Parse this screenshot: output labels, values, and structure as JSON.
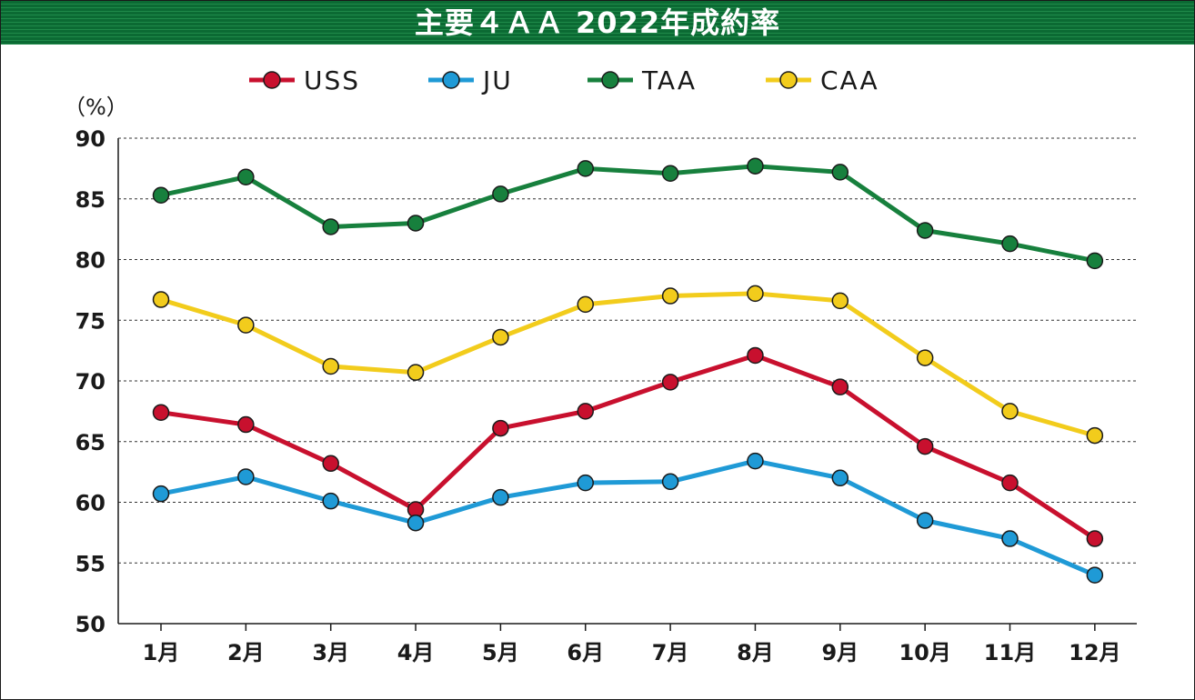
{
  "chart_data": {
    "type": "line",
    "title": "主要４ＡＡ 2022年成約率",
    "ylabel": "（%）",
    "xlabel": "",
    "ylim": [
      50,
      90
    ],
    "yticks": [
      50,
      55,
      60,
      65,
      70,
      75,
      80,
      85,
      90
    ],
    "grid": true,
    "legend_position": "top",
    "categories": [
      "1月",
      "2月",
      "3月",
      "4月",
      "5月",
      "6月",
      "7月",
      "8月",
      "9月",
      "10月",
      "11月",
      "12月"
    ],
    "series": [
      {
        "name": "USS",
        "color": "#c8102e",
        "values": [
          67.4,
          66.4,
          63.2,
          59.4,
          66.1,
          67.5,
          69.9,
          72.1,
          69.5,
          64.6,
          61.6,
          57.0
        ]
      },
      {
        "name": "JU",
        "color": "#1f9ad6",
        "values": [
          60.7,
          62.1,
          60.1,
          58.3,
          60.4,
          61.6,
          61.7,
          63.4,
          62.0,
          58.5,
          57.0,
          54.0
        ]
      },
      {
        "name": "TAA",
        "color": "#17803d",
        "values": [
          85.3,
          86.8,
          82.7,
          83.0,
          85.4,
          87.5,
          87.1,
          87.7,
          87.2,
          82.4,
          81.3,
          79.9
        ]
      },
      {
        "name": "CAA",
        "color": "#f2cc1c",
        "values": [
          76.7,
          74.6,
          71.2,
          70.7,
          73.6,
          76.3,
          77.0,
          77.2,
          76.6,
          71.9,
          67.5,
          65.5
        ]
      }
    ]
  }
}
